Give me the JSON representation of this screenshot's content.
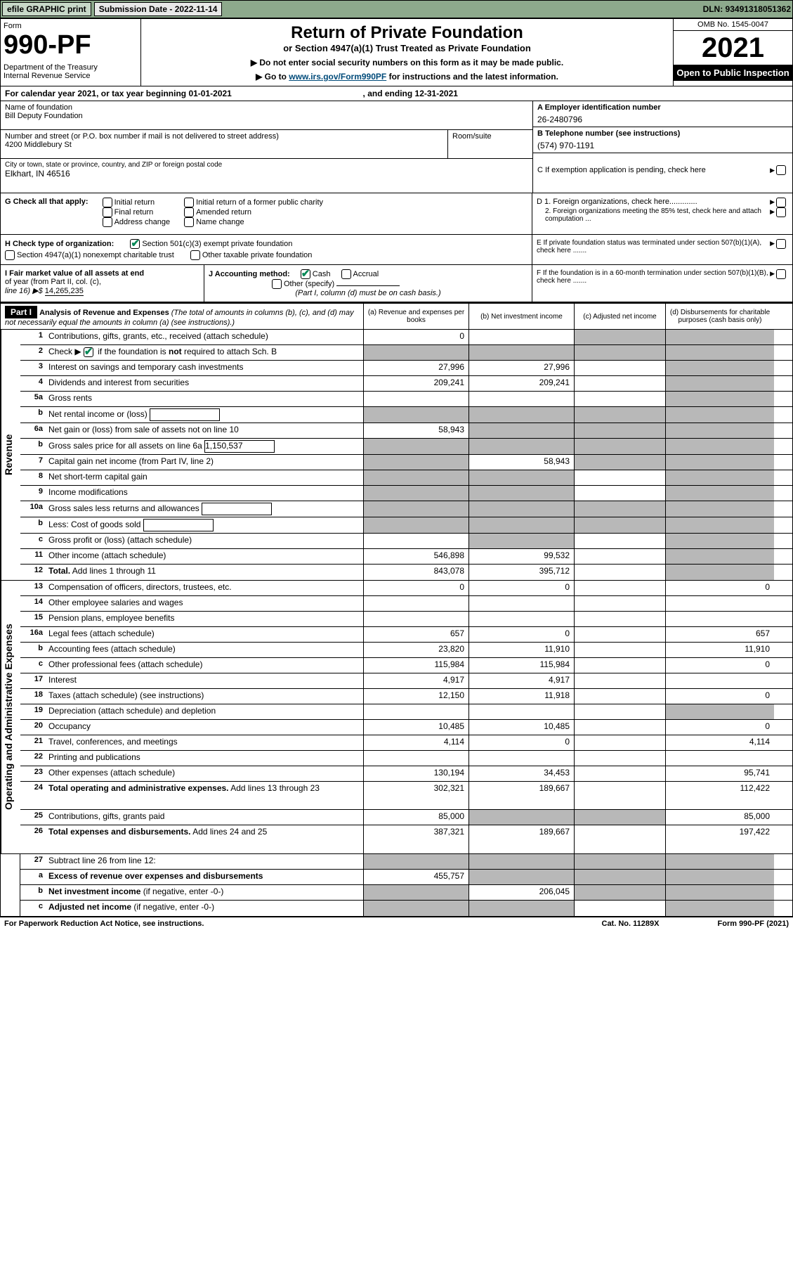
{
  "topbar": {
    "efile": "efile GRAPHIC print",
    "sub_label": "Submission Date - 2022-11-14",
    "dln": "DLN: 93491318051362"
  },
  "header": {
    "form": "Form",
    "number": "990-PF",
    "dept": "Department of the Treasury\nInternal Revenue Service",
    "title": "Return of Private Foundation",
    "subtitle": "or Section 4947(a)(1) Trust Treated as Private Foundation",
    "note1": "▶ Do not enter social security numbers on this form as it may be made public.",
    "note2_pre": "▶ Go to ",
    "note2_link": "www.irs.gov/Form990PF",
    "note2_post": " for instructions and the latest information.",
    "omb": "OMB No. 1545-0047",
    "year": "2021",
    "open": "Open to Public Inspection"
  },
  "cal": {
    "text_pre": "For calendar year 2021, or tax year beginning ",
    "begin": "01-01-2021",
    "mid": " , and ending ",
    "end": "12-31-2021"
  },
  "entity": {
    "name_lbl": "Name of foundation",
    "name": "Bill Deputy Foundation",
    "addr_lbl": "Number and street (or P.O. box number if mail is not delivered to street address)",
    "addr": "4200 Middlebury St",
    "room_lbl": "Room/suite",
    "city_lbl": "City or town, state or province, country, and ZIP or foreign postal code",
    "city": "Elkhart, IN  46516",
    "ein_lbl": "A Employer identification number",
    "ein": "26-2480796",
    "phone_lbl": "B Telephone number (see instructions)",
    "phone": "(574) 970-1191",
    "c": "C If exemption application is pending, check here",
    "d1": "D 1. Foreign organizations, check here.............",
    "d2": "2. Foreign organizations meeting the 85% test, check here and attach computation ...",
    "e": "E  If private foundation status was terminated under section 507(b)(1)(A), check here .......",
    "f": "F  If the foundation is in a 60-month termination under section 507(b)(1)(B), check here .......",
    "g_lbl": "G Check all that apply:",
    "g_opts": [
      "Initial return",
      "Final return",
      "Address change",
      "Initial return of a former public charity",
      "Amended return",
      "Name change"
    ],
    "h_lbl": "H Check type of organization:",
    "h_opts": [
      "Section 501(c)(3) exempt private foundation",
      "Section 4947(a)(1) nonexempt charitable trust",
      "Other taxable private foundation"
    ],
    "i_lbl": "I Fair market value of all assets at end",
    "i2": "of year (from Part II, col. (c),",
    "i3_pre": "line 16) ▶$ ",
    "i_val": "14,265,235",
    "j_lbl": "J Accounting method:",
    "j_opts": [
      "Cash",
      "Accrual",
      "Other (specify)"
    ],
    "j_note": "(Part I, column (d) must be on cash basis.)"
  },
  "part1": {
    "part": "Part I",
    "title": "Analysis of Revenue and Expenses ",
    "title_note": "(The total of amounts in columns (b), (c), and (d) may not necessarily equal the amounts in column (a) (see instructions).)",
    "cols": {
      "a": "(a) Revenue and expenses per books",
      "b": "(b) Net investment income",
      "c": "(c) Adjusted net income",
      "d": "(d) Disbursements for charitable purposes (cash basis only)"
    }
  },
  "sections": {
    "rev": "Revenue",
    "exp": "Operating and Administrative Expenses"
  },
  "colw": {
    "a": 150,
    "b": 150,
    "c": 130,
    "d": 155
  },
  "rows": [
    {
      "ln": "1",
      "dsc": "Contributions, gifts, grants, etc., received (attach schedule)",
      "a": "0",
      "b": "",
      "c": "g",
      "d": "g"
    },
    {
      "ln": "2",
      "dsc": "Check ▶ [✔] if the foundation is <b>not</b> required to attach Sch. B",
      "a": "g",
      "b": "g",
      "c": "g",
      "d": "g",
      "chk": true
    },
    {
      "ln": "3",
      "dsc": "Interest on savings and temporary cash investments",
      "a": "27,996",
      "b": "27,996",
      "c": "",
      "d": "g"
    },
    {
      "ln": "4",
      "dsc": "Dividends and interest from securities",
      "a": "209,241",
      "b": "209,241",
      "c": "",
      "d": "g"
    },
    {
      "ln": "5a",
      "dsc": "Gross rents",
      "a": "",
      "b": "",
      "c": "",
      "d": "g"
    },
    {
      "ln": "b",
      "dsc": "Net rental income or (loss)",
      "a": "g",
      "b": "g",
      "c": "g",
      "d": "g",
      "sub": true
    },
    {
      "ln": "6a",
      "dsc": "Net gain or (loss) from sale of assets not on line 10",
      "a": "58,943",
      "b": "g",
      "c": "g",
      "d": "g"
    },
    {
      "ln": "b",
      "dsc": "Gross sales price for all assets on line 6a",
      "a": "g",
      "b": "g",
      "c": "g",
      "d": "g",
      "sub": true,
      "inline": "1,150,537"
    },
    {
      "ln": "7",
      "dsc": "Capital gain net income (from Part IV, line 2)",
      "a": "g",
      "b": "58,943",
      "c": "g",
      "d": "g"
    },
    {
      "ln": "8",
      "dsc": "Net short-term capital gain",
      "a": "g",
      "b": "g",
      "c": "",
      "d": "g"
    },
    {
      "ln": "9",
      "dsc": "Income modifications",
      "a": "g",
      "b": "g",
      "c": "",
      "d": "g"
    },
    {
      "ln": "10a",
      "dsc": "Gross sales less returns and allowances",
      "a": "g",
      "b": "g",
      "c": "g",
      "d": "g",
      "sub": true
    },
    {
      "ln": "b",
      "dsc": "Less: Cost of goods sold",
      "a": "g",
      "b": "g",
      "c": "g",
      "d": "g",
      "sub": true
    },
    {
      "ln": "c",
      "dsc": "Gross profit or (loss) (attach schedule)",
      "a": "",
      "b": "g",
      "c": "",
      "d": "g"
    },
    {
      "ln": "11",
      "dsc": "Other income (attach schedule)",
      "a": "546,898",
      "b": "99,532",
      "c": "",
      "d": "g"
    },
    {
      "ln": "12",
      "dsc": "<b>Total.</b> Add lines 1 through 11",
      "a": "843,078",
      "b": "395,712",
      "c": "",
      "d": "g"
    }
  ],
  "exprows": [
    {
      "ln": "13",
      "dsc": "Compensation of officers, directors, trustees, etc.",
      "a": "0",
      "b": "0",
      "c": "",
      "d": "0"
    },
    {
      "ln": "14",
      "dsc": "Other employee salaries and wages",
      "a": "",
      "b": "",
      "c": "",
      "d": ""
    },
    {
      "ln": "15",
      "dsc": "Pension plans, employee benefits",
      "a": "",
      "b": "",
      "c": "",
      "d": ""
    },
    {
      "ln": "16a",
      "dsc": "Legal fees (attach schedule)",
      "a": "657",
      "b": "0",
      "c": "",
      "d": "657"
    },
    {
      "ln": "b",
      "dsc": "Accounting fees (attach schedule)",
      "a": "23,820",
      "b": "11,910",
      "c": "",
      "d": "11,910"
    },
    {
      "ln": "c",
      "dsc": "Other professional fees (attach schedule)",
      "a": "115,984",
      "b": "115,984",
      "c": "",
      "d": "0"
    },
    {
      "ln": "17",
      "dsc": "Interest",
      "a": "4,917",
      "b": "4,917",
      "c": "",
      "d": ""
    },
    {
      "ln": "18",
      "dsc": "Taxes (attach schedule) (see instructions)",
      "a": "12,150",
      "b": "11,918",
      "c": "",
      "d": "0"
    },
    {
      "ln": "19",
      "dsc": "Depreciation (attach schedule) and depletion",
      "a": "",
      "b": "",
      "c": "",
      "d": "g"
    },
    {
      "ln": "20",
      "dsc": "Occupancy",
      "a": "10,485",
      "b": "10,485",
      "c": "",
      "d": "0"
    },
    {
      "ln": "21",
      "dsc": "Travel, conferences, and meetings",
      "a": "4,114",
      "b": "0",
      "c": "",
      "d": "4,114"
    },
    {
      "ln": "22",
      "dsc": "Printing and publications",
      "a": "",
      "b": "",
      "c": "",
      "d": ""
    },
    {
      "ln": "23",
      "dsc": "Other expenses (attach schedule)",
      "a": "130,194",
      "b": "34,453",
      "c": "",
      "d": "95,741"
    },
    {
      "ln": "24",
      "dsc": "<b>Total operating and administrative expenses.</b> Add lines 13 through 23",
      "a": "302,321",
      "b": "189,667",
      "c": "",
      "d": "112,422",
      "tall": true
    },
    {
      "ln": "25",
      "dsc": "Contributions, gifts, grants paid",
      "a": "85,000",
      "b": "g",
      "c": "g",
      "d": "85,000"
    },
    {
      "ln": "26",
      "dsc": "<b>Total expenses and disbursements.</b> Add lines 24 and 25",
      "a": "387,321",
      "b": "189,667",
      "c": "",
      "d": "197,422",
      "tall": true
    }
  ],
  "botrows": [
    {
      "ln": "27",
      "dsc": "Subtract line 26 from line 12:",
      "a": "g",
      "b": "g",
      "c": "g",
      "d": "g"
    },
    {
      "ln": "a",
      "dsc": "<b>Excess of revenue over expenses and disbursements</b>",
      "a": "455,757",
      "b": "g",
      "c": "g",
      "d": "g"
    },
    {
      "ln": "b",
      "dsc": "<b>Net investment income</b> (if negative, enter -0-)",
      "a": "g",
      "b": "206,045",
      "c": "g",
      "d": "g"
    },
    {
      "ln": "c",
      "dsc": "<b>Adjusted net income</b> (if negative, enter -0-)",
      "a": "g",
      "b": "g",
      "c": "",
      "d": "g"
    }
  ],
  "footer": {
    "left": "For Paperwork Reduction Act Notice, see instructions.",
    "mid": "Cat. No. 11289X",
    "right": "Form 990-PF (2021)"
  }
}
